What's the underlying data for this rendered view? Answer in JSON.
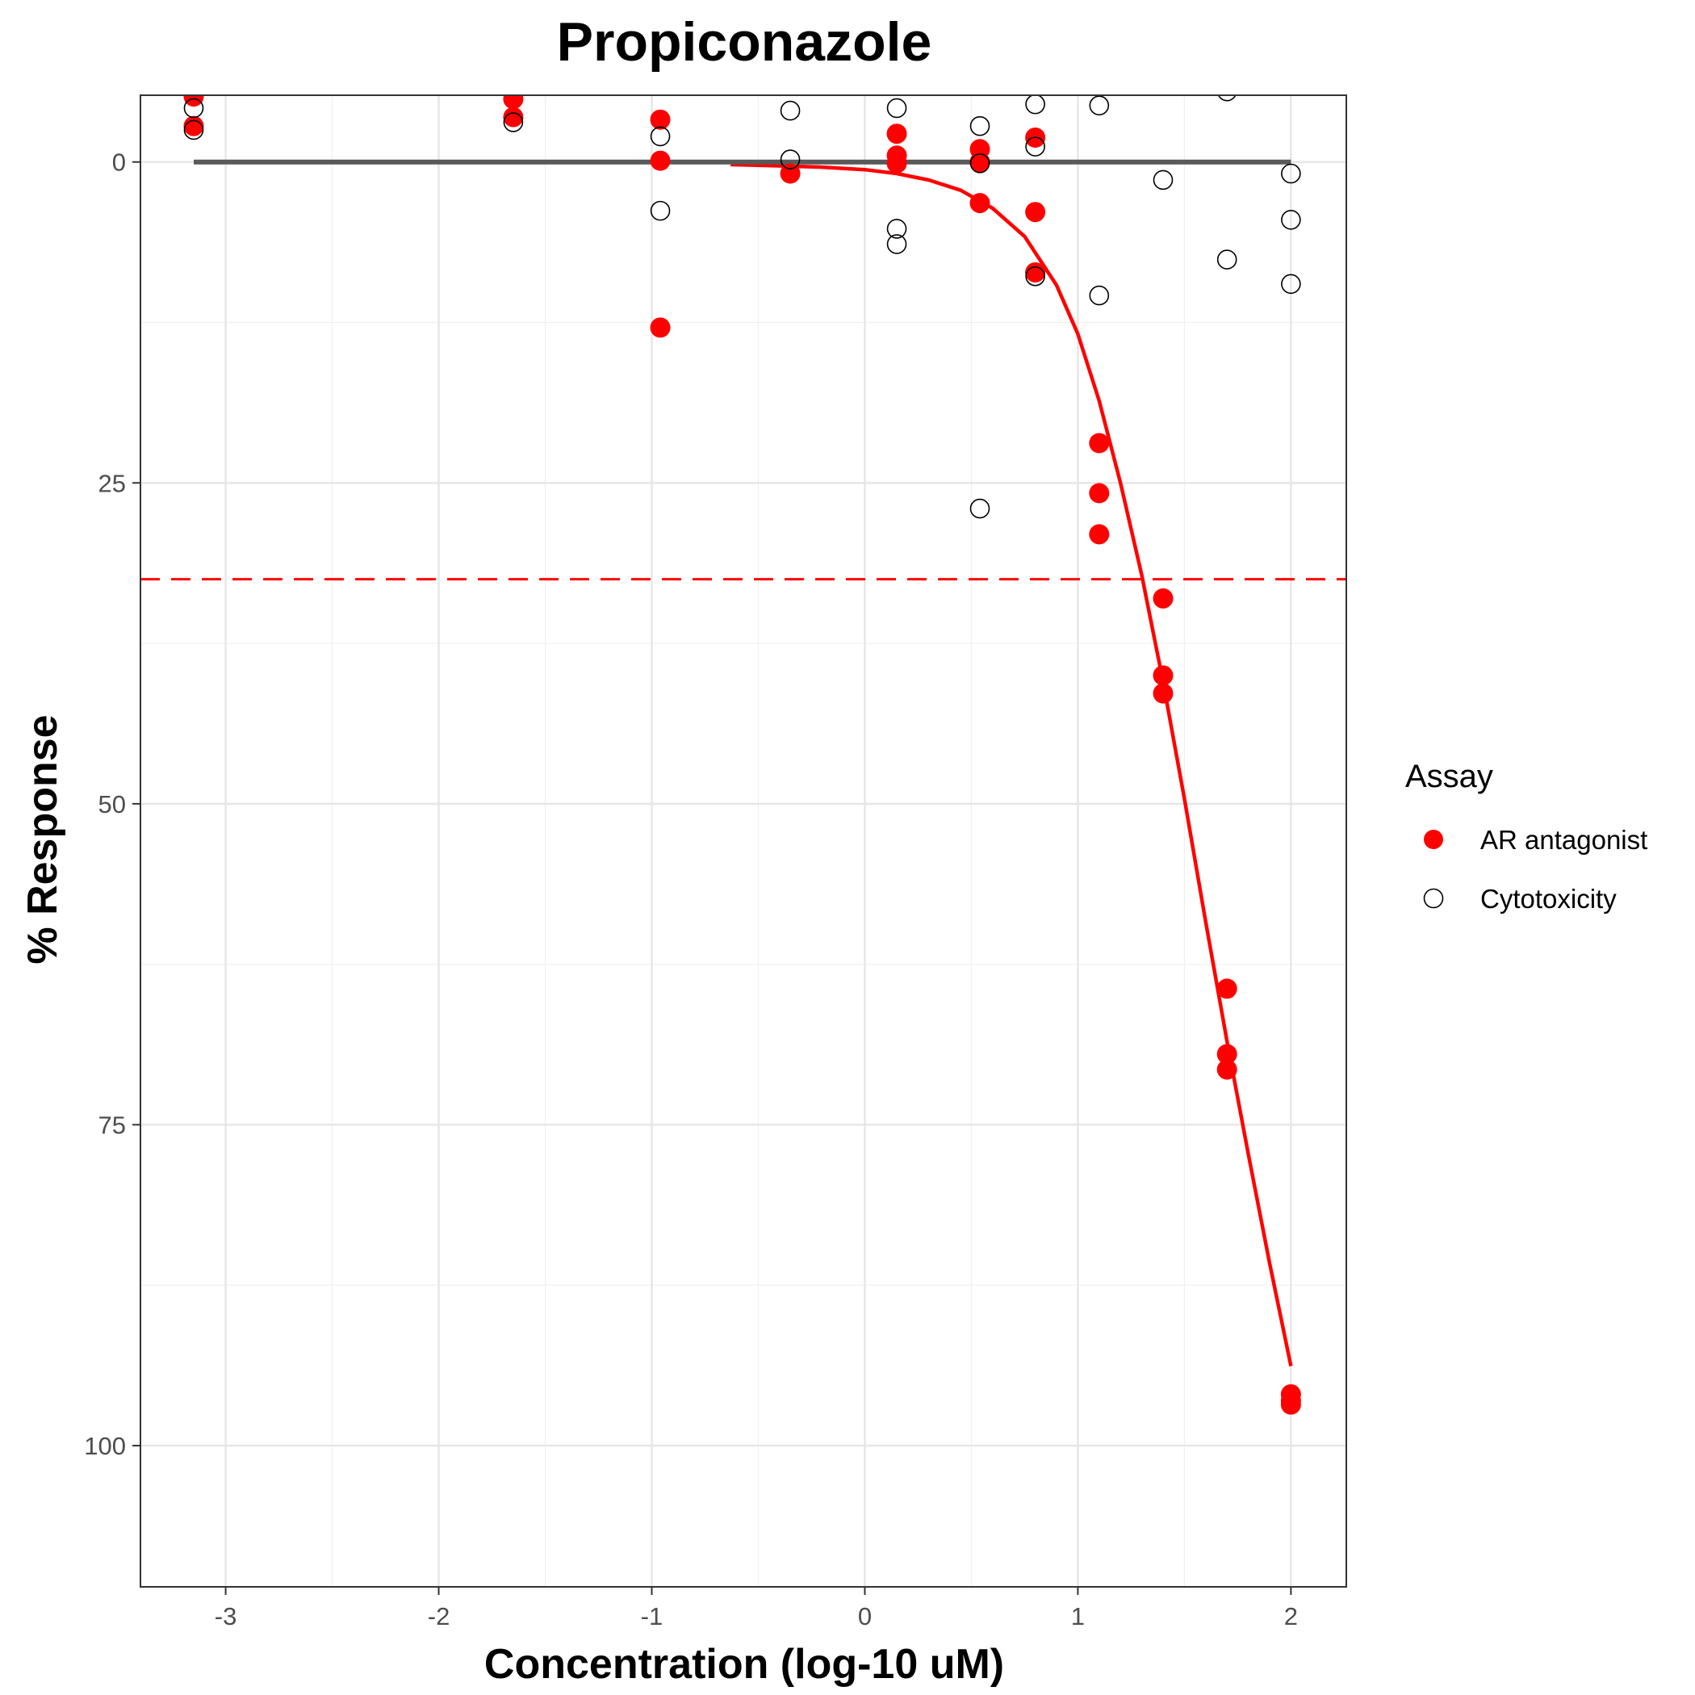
{
  "chart_data": {
    "type": "scatter",
    "title": "Propiconazole",
    "xlabel": "Concentration (log-10 uM)",
    "ylabel": "% Response",
    "xlim": [
      -3.4,
      2.26
    ],
    "ylim": [
      -5.2,
      111
    ],
    "y_reversed": true,
    "x_ticks": [
      -3,
      -2,
      -1,
      0,
      1,
      2
    ],
    "x_tick_labels": [
      "-3",
      "-2",
      "-1",
      "0",
      "1",
      "2"
    ],
    "y_ticks": [
      0,
      25,
      50,
      75,
      100
    ],
    "y_tick_labels": [
      "0",
      "25",
      "50",
      "75",
      "100"
    ],
    "grid": true,
    "legend": {
      "title": "Assay",
      "position": "right",
      "entries": [
        "AR antagonist",
        "Cytotoxicity"
      ]
    },
    "series": [
      {
        "name": "AR antagonist",
        "marker": "filled-circle",
        "color": "#ff0000",
        "points": [
          [
            -3.15,
            -5.1
          ],
          [
            -3.15,
            -2.8
          ],
          [
            -1.65,
            -4.9
          ],
          [
            -1.65,
            -3.5
          ],
          [
            -0.96,
            -3.3
          ],
          [
            -0.96,
            -0.1
          ],
          [
            -0.96,
            12.9
          ],
          [
            -0.35,
            0.9
          ],
          [
            0.15,
            -2.2
          ],
          [
            0.15,
            -0.5
          ],
          [
            0.15,
            0.1
          ],
          [
            0.54,
            -1.0
          ],
          [
            0.54,
            0.0
          ],
          [
            0.54,
            3.2
          ],
          [
            0.8,
            -1.9
          ],
          [
            0.8,
            3.9
          ],
          [
            0.8,
            8.6
          ],
          [
            1.1,
            21.9
          ],
          [
            1.1,
            25.8
          ],
          [
            1.1,
            29.0
          ],
          [
            1.4,
            34.0
          ],
          [
            1.4,
            40.0
          ],
          [
            1.4,
            41.4
          ],
          [
            1.7,
            64.4
          ],
          [
            1.7,
            69.5
          ],
          [
            1.7,
            70.7
          ],
          [
            2.0,
            96.0
          ],
          [
            2.0,
            96.5
          ],
          [
            2.0,
            96.8
          ]
        ]
      },
      {
        "name": "Cytotoxicity",
        "marker": "open-circle",
        "color": "#000000",
        "points": [
          [
            -3.15,
            -4.2
          ],
          [
            -3.15,
            -2.5
          ],
          [
            -1.65,
            -3.1
          ],
          [
            -0.96,
            -2.0
          ],
          [
            -0.96,
            3.8
          ],
          [
            -0.35,
            -4.0
          ],
          [
            -0.35,
            -0.2
          ],
          [
            0.15,
            -4.2
          ],
          [
            0.15,
            5.2
          ],
          [
            0.15,
            6.4
          ],
          [
            0.54,
            -2.8
          ],
          [
            0.54,
            0.1
          ],
          [
            0.54,
            27.0
          ],
          [
            0.8,
            -4.5
          ],
          [
            0.8,
            -1.2
          ],
          [
            0.8,
            8.9
          ],
          [
            1.1,
            -4.4
          ],
          [
            1.1,
            10.4
          ],
          [
            1.4,
            1.4
          ],
          [
            1.7,
            -5.5
          ],
          [
            1.7,
            7.6
          ],
          [
            2.0,
            0.9
          ],
          [
            2.0,
            4.5
          ],
          [
            2.0,
            9.5
          ]
        ]
      }
    ],
    "lines": [
      {
        "role": "fitted-curve",
        "series": "AR antagonist",
        "color": "#ff0000",
        "style": "solid",
        "points": [
          [
            -0.63,
            0.2
          ],
          [
            -0.4,
            0.3
          ],
          [
            -0.2,
            0.4
          ],
          [
            0.0,
            0.6
          ],
          [
            0.15,
            0.9
          ],
          [
            0.3,
            1.4
          ],
          [
            0.45,
            2.2
          ],
          [
            0.6,
            3.6
          ],
          [
            0.75,
            5.8
          ],
          [
            0.9,
            9.6
          ],
          [
            1.0,
            13.4
          ],
          [
            1.1,
            18.6
          ],
          [
            1.2,
            25.0
          ],
          [
            1.3,
            32.2
          ],
          [
            1.4,
            40.5
          ],
          [
            1.5,
            49.6
          ],
          [
            1.6,
            59.2
          ],
          [
            1.7,
            68.5
          ],
          [
            1.8,
            77.3
          ],
          [
            1.9,
            85.8
          ],
          [
            2.0,
            93.8
          ]
        ]
      },
      {
        "role": "cytotoxicity-curve",
        "series": "Cytotoxicity",
        "color": "#595959",
        "style": "solid",
        "points": [
          [
            -3.15,
            0.0
          ],
          [
            2.0,
            0.0
          ]
        ]
      },
      {
        "role": "threshold",
        "color": "#ff0000",
        "style": "dashed",
        "y": 32.5
      }
    ]
  }
}
